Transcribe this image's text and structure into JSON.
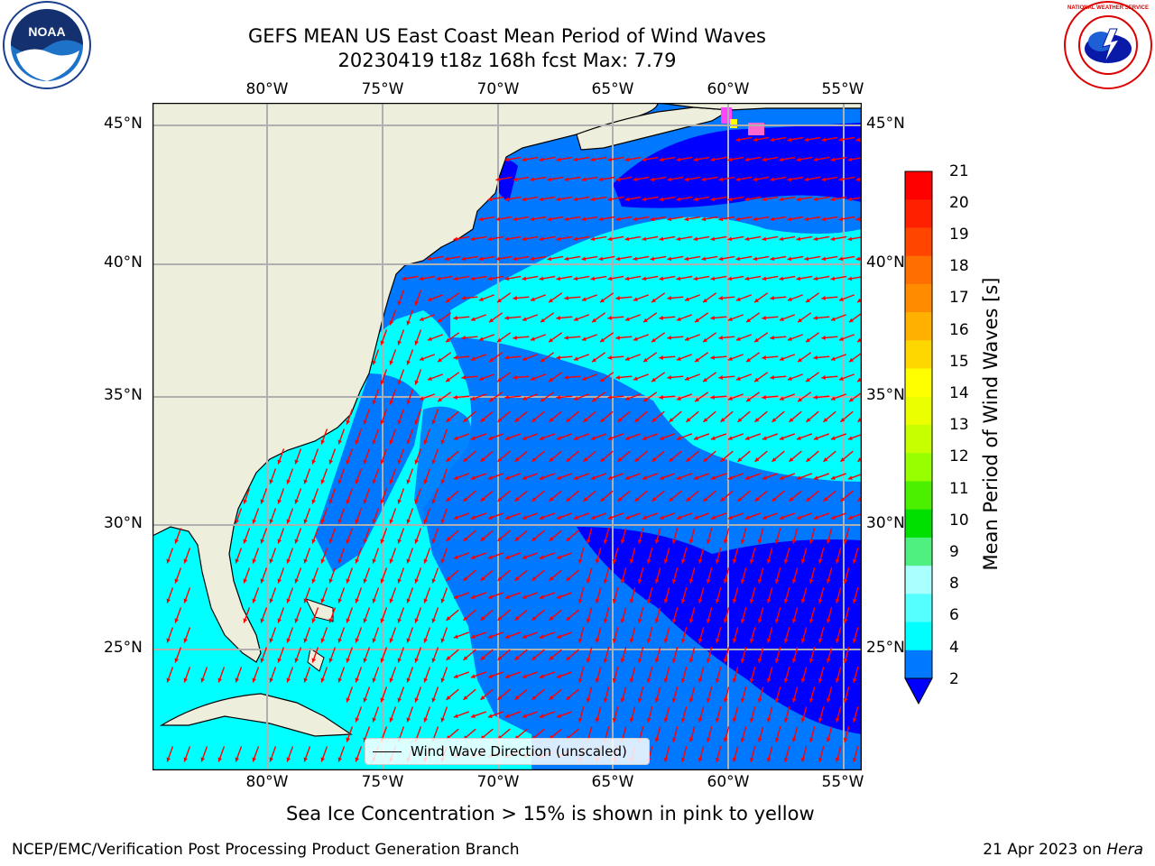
{
  "header": {
    "title_line1": "GEFS MEAN US East Coast Mean Period of Wind Waves",
    "title_line2": "20230419 t18z 168h fcst   Max: 7.79"
  },
  "logos": {
    "noaa": "NOAA",
    "noaa_ring": "NATIONAL OCEANIC AND ATMOSPHERIC ADMINISTRATION · U.S. DEPARTMENT OF COMMERCE",
    "nws_ring": "NATIONAL WEATHER SERVICE"
  },
  "map": {
    "lon_labels": [
      "80°W",
      "75°W",
      "70°W",
      "65°W",
      "60°W",
      "55°W"
    ],
    "lat_labels": [
      "45°N",
      "40°N",
      "35°N",
      "30°N",
      "25°N"
    ],
    "legend_label": "Wind Wave Direction (unscaled)",
    "colors": {
      "land": "#eeeedc",
      "band_2_4": "#0078ff",
      "band_under_2": "#0000ff",
      "band_4_6": "#00ffff",
      "band_6_8": "#53ffff",
      "arrow": "#ff0000",
      "ice": "#ff44ff",
      "grid": "#b0b0b0"
    }
  },
  "colorbar": {
    "label": "Mean Period of Wind Waves [s]",
    "ticks": [
      "21",
      "20",
      "19",
      "18",
      "17",
      "16",
      "15",
      "14",
      "13",
      "12",
      "11",
      "10",
      "9",
      "8",
      "6",
      "4",
      "2"
    ],
    "colors": [
      "#ff0000",
      "#ff2000",
      "#ff4500",
      "#ff6e00",
      "#ff8c00",
      "#ffb000",
      "#ffd700",
      "#ffff00",
      "#ebff00",
      "#c8ff00",
      "#96ff00",
      "#4bf000",
      "#00e000",
      "#50f080",
      "#aaffff",
      "#53ffff",
      "#00ffff",
      "#0078ff"
    ],
    "under_color": "#0000ff"
  },
  "footer": {
    "ice_note": "Sea Ice Concentration > 15% is shown in pink to yellow",
    "left": "NCEP/EMC/Verification Post Processing Product Generation Branch",
    "date_prefix": "21 Apr 2023 on ",
    "machine": "Hera"
  }
}
